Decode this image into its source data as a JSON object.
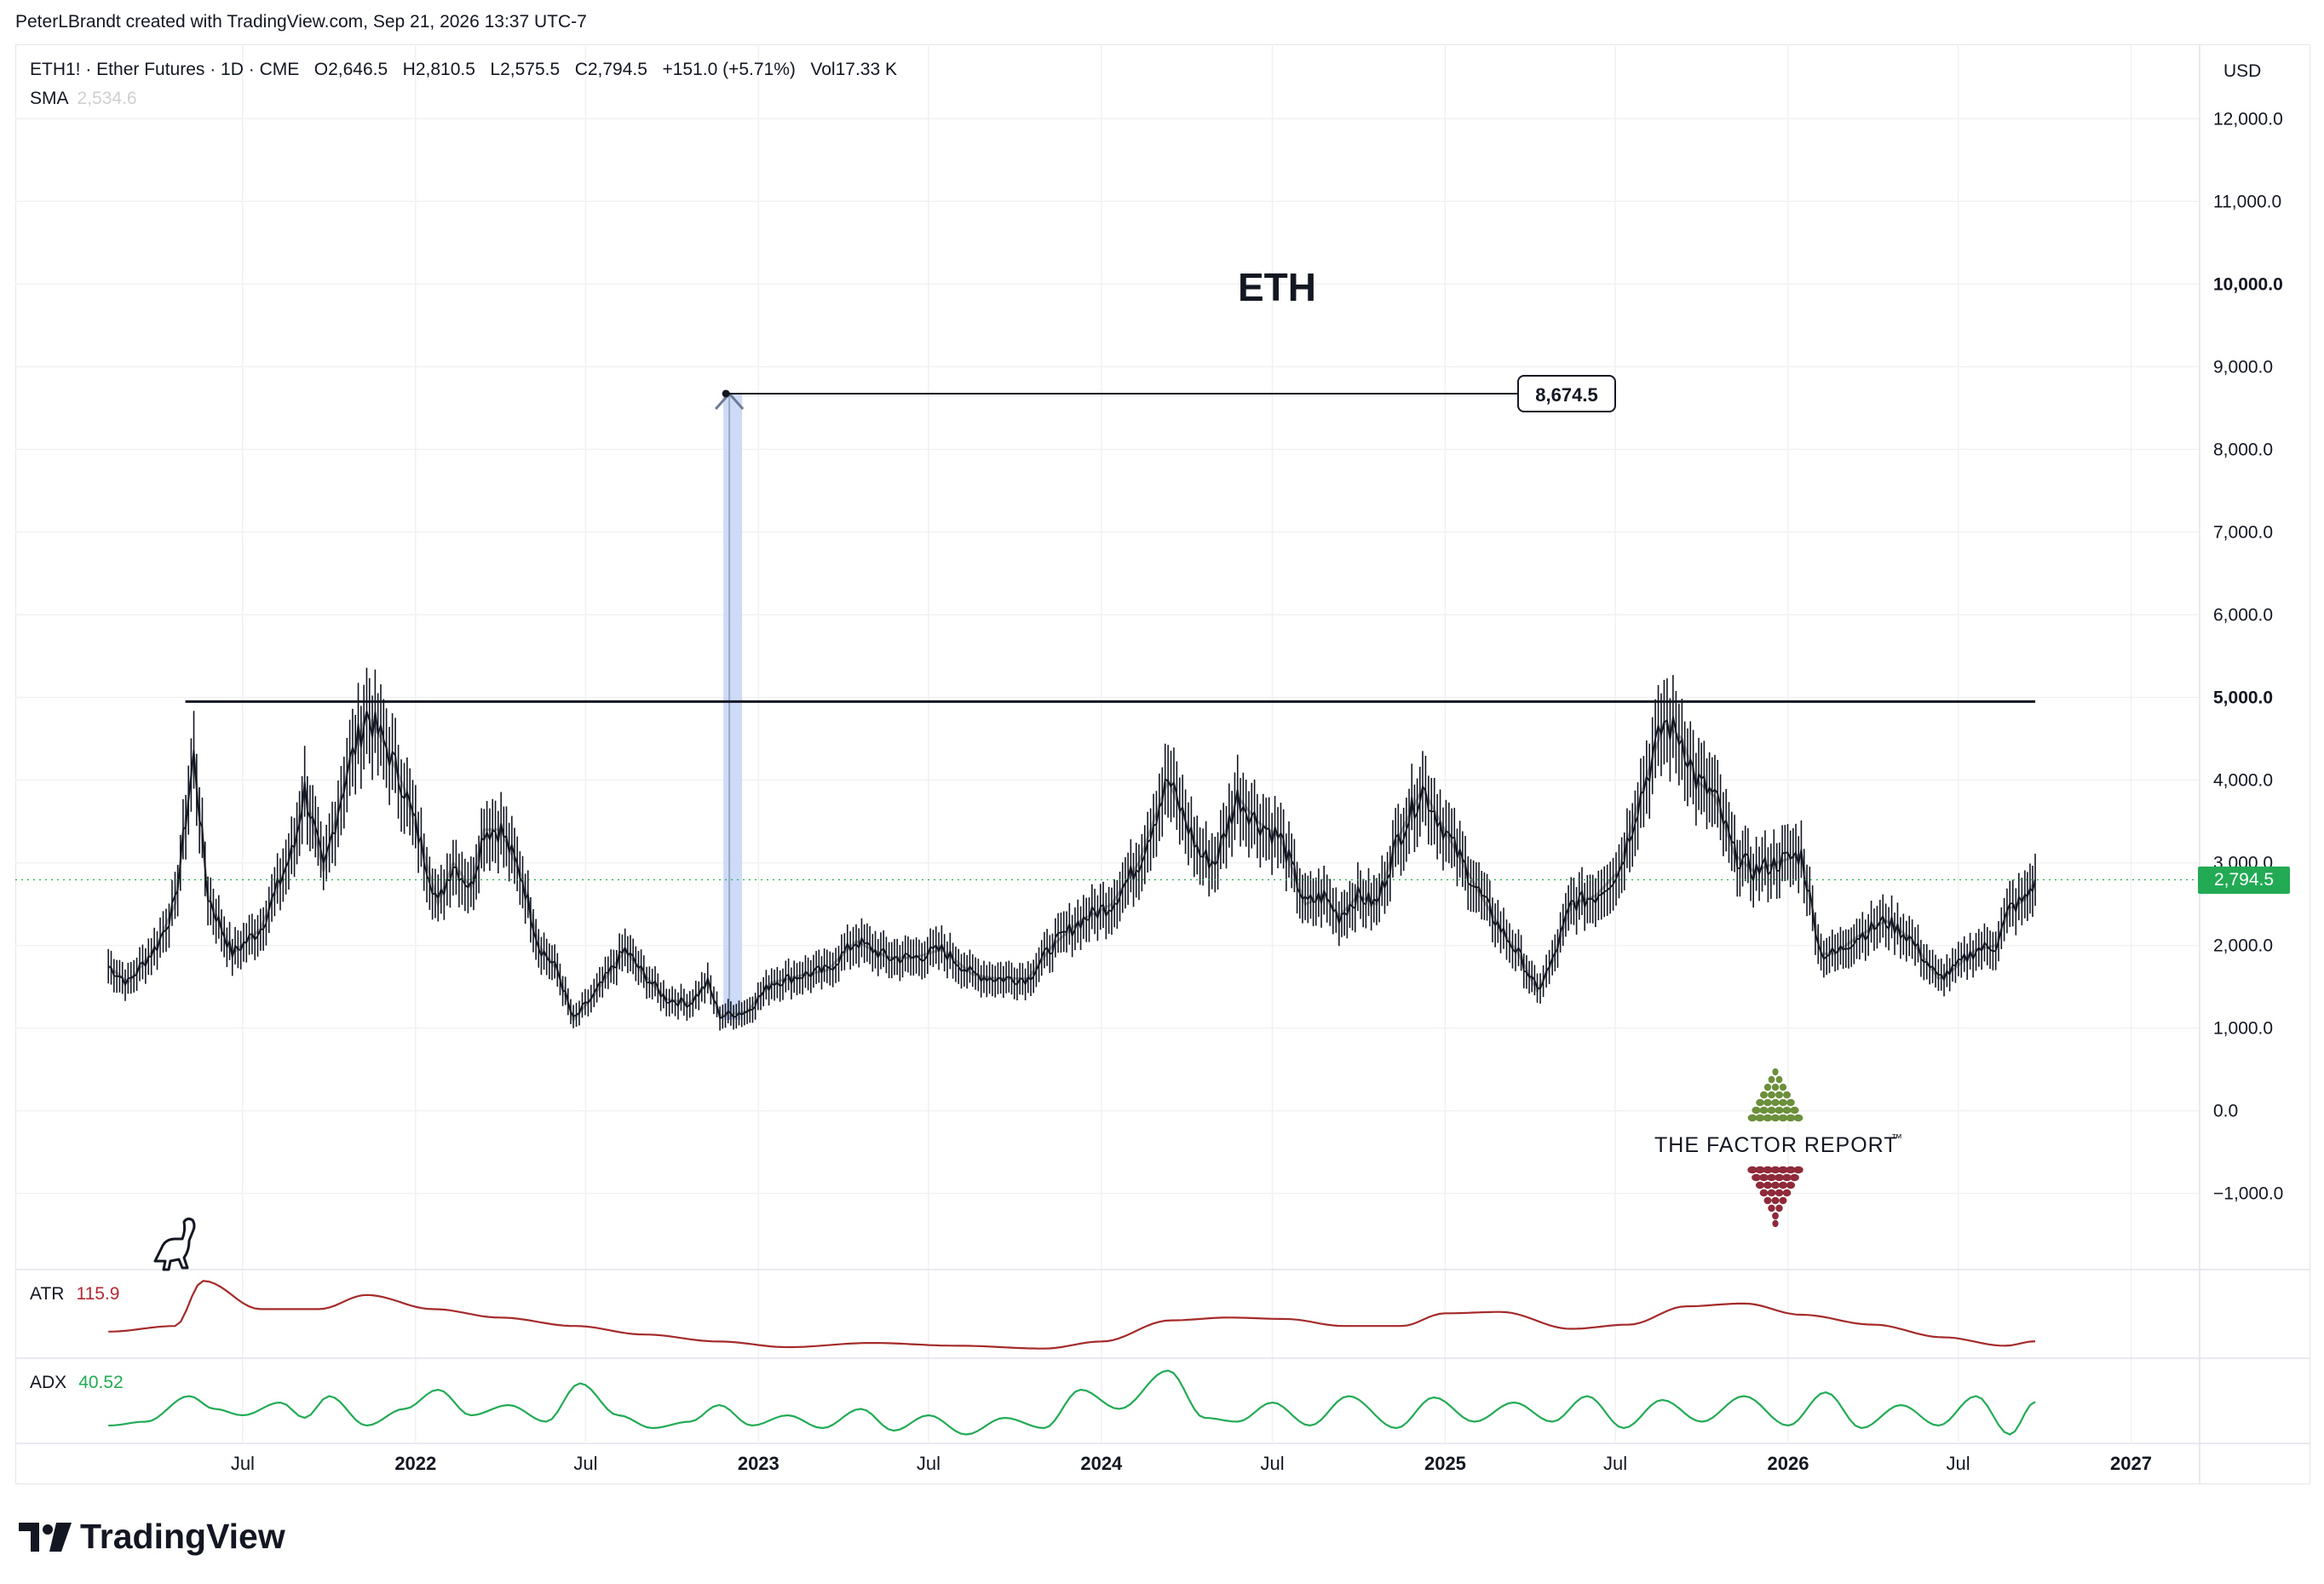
{
  "credit": "PeterLBrandt created with TradingView.com, Sep 21, 2026 13:37 UTC-7",
  "legend": {
    "symbol": "ETH1! · Ether Futures · 1D · CME",
    "open": "O2,646.5",
    "high": "H2,810.5",
    "low": "L2,575.5",
    "close": "C2,794.5",
    "change": "+151.0 (+5.71%)",
    "volume": "Vol17.33 K",
    "sma_label": "SMA",
    "sma_value": "2,534.6"
  },
  "currency": "USD",
  "title": "ETH",
  "last_price_label": "2,794.5",
  "target_label": "8,674.5",
  "indicators": {
    "atr_label": "ATR",
    "atr_value": "115.9",
    "adx_label": "ADX",
    "adx_value": "40.52"
  },
  "logo": {
    "text": "THE FACTOR REPORT",
    "tm": "™"
  },
  "brand": "TradingView",
  "colors": {
    "candle": "#131722",
    "sma": "#b5b5b5",
    "atr": "#a52a2a",
    "adx": "#22ab54",
    "target_band": "#c9d7f5",
    "last_price": "#22ab54"
  },
  "icons": [
    "dinosaur-icon",
    "tradingview-logo-icon",
    "factor-report-logo-icon"
  ],
  "chart_data": {
    "type": "line",
    "symbol": "ETH1!",
    "y_axis": {
      "ticks": [
        12000,
        11000,
        10000,
        9000,
        8000,
        7000,
        6000,
        5000,
        4000,
        3000,
        2000,
        1000,
        0,
        -1000
      ],
      "tick_labels": [
        "12,000.0",
        "11,000.0",
        "10,000.0",
        "9,000.0",
        "8,000.0",
        "7,000.0",
        "6,000.0",
        "5,000.0",
        "4,000.0",
        "3,000.0",
        "2,000.0",
        "1,000.0",
        "0.0",
        "−1,000.0"
      ],
      "range": [
        -1900,
        12900
      ]
    },
    "x_axis": {
      "tick_labels": [
        "Jul",
        "2022",
        "Jul",
        "2023",
        "Jul",
        "2024",
        "Jul",
        "2025",
        "Jul",
        "2026",
        "Jul",
        "2027"
      ],
      "tick_dates": [
        "2021-07-01",
        "2022-01-01",
        "2022-07-01",
        "2023-01-01",
        "2023-07-01",
        "2024-01-01",
        "2024-07-01",
        "2025-01-01",
        "2025-07-01",
        "2026-01-01",
        "2026-07-01",
        "2027-01-01"
      ],
      "range": [
        "2020-11-01",
        "2027-03-15"
      ]
    },
    "series": [
      {
        "name": "ETH1!",
        "x": [
          "2021-02-08",
          "2021-03-01",
          "2021-04-01",
          "2021-04-20",
          "2021-05-10",
          "2021-05-25",
          "2021-06-20",
          "2021-07-20",
          "2021-08-25",
          "2021-09-05",
          "2021-09-25",
          "2021-10-20",
          "2021-11-10",
          "2021-12-01",
          "2021-12-20",
          "2022-01-10",
          "2022-01-25",
          "2022-02-10",
          "2022-03-01",
          "2022-03-15",
          "2022-04-02",
          "2022-04-25",
          "2022-05-12",
          "2022-06-01",
          "2022-06-18",
          "2022-07-10",
          "2022-08-12",
          "2022-09-01",
          "2022-09-25",
          "2022-10-20",
          "2022-11-08",
          "2022-11-21",
          "2022-12-20",
          "2023-01-15",
          "2023-02-20",
          "2023-03-15",
          "2023-04-15",
          "2023-05-20",
          "2023-06-15",
          "2023-07-15",
          "2023-08-17",
          "2023-09-10",
          "2023-10-15",
          "2023-11-10",
          "2023-12-10",
          "2024-01-12",
          "2024-02-10",
          "2024-03-12",
          "2024-04-15",
          "2024-05-01",
          "2024-05-25",
          "2024-06-15",
          "2024-07-10",
          "2024-08-05",
          "2024-08-25",
          "2024-09-10",
          "2024-09-30",
          "2024-10-20",
          "2024-11-12",
          "2024-12-08",
          "2025-01-05",
          "2025-02-03",
          "2025-03-01",
          "2025-03-20",
          "2025-04-09",
          "2025-04-25",
          "2025-05-15",
          "2025-06-10",
          "2025-07-05",
          "2025-07-25",
          "2025-08-22",
          "2025-09-10",
          "2025-09-25",
          "2025-10-15",
          "2025-11-05",
          "2025-11-25",
          "2025-12-20",
          "2026-01-15",
          "2026-02-05",
          "2026-02-20",
          "2026-03-15",
          "2026-04-15",
          "2026-05-10",
          "2026-06-10",
          "2026-06-25",
          "2026-07-20",
          "2026-08-10",
          "2026-08-25",
          "2026-09-10",
          "2026-09-21"
        ],
        "values": [
          1750,
          1550,
          2000,
          2500,
          4300,
          2600,
          1900,
          2200,
          3200,
          3900,
          2900,
          4100,
          4800,
          4400,
          3900,
          3100,
          2500,
          3000,
          2700,
          3400,
          3400,
          2800,
          2000,
          1700,
          1100,
          1400,
          1950,
          1650,
          1350,
          1300,
          1550,
          1150,
          1200,
          1550,
          1650,
          1700,
          2050,
          1850,
          1850,
          1950,
          1650,
          1600,
          1600,
          2000,
          2300,
          2500,
          3000,
          4000,
          3100,
          3000,
          3800,
          3500,
          3300,
          2500,
          2600,
          2350,
          2600,
          2500,
          3300,
          3900,
          3300,
          2700,
          2200,
          1900,
          1450,
          1800,
          2500,
          2600,
          2900,
          3700,
          4700,
          4500,
          4000,
          3800,
          3100,
          2900,
          3000,
          3100,
          1900,
          1900,
          2100,
          2300,
          2100,
          1600,
          1700,
          1950,
          2000,
          2450,
          2550,
          2794.5
        ]
      }
    ],
    "annotations": {
      "resistance_level": 4950,
      "projection_start": 1100,
      "projection_target": 8674.5,
      "projection_date": "2022-12-01"
    },
    "indicators": {
      "atr": {
        "name": "ATR",
        "last": 115.9,
        "x": [
          "2021-02-08",
          "2021-04-20",
          "2021-05-20",
          "2021-07-20",
          "2021-09-20",
          "2021-11-10",
          "2022-01-20",
          "2022-04-01",
          "2022-06-20",
          "2022-09-01",
          "2022-11-20",
          "2023-02-01",
          "2023-05-01",
          "2023-08-01",
          "2023-11-01",
          "2024-01-01",
          "2024-03-15",
          "2024-05-15",
          "2024-07-15",
          "2024-09-15",
          "2024-11-15",
          "2025-01-01",
          "2025-03-01",
          "2025-05-15",
          "2025-07-15",
          "2025-09-15",
          "2025-11-15",
          "2026-01-15",
          "2026-04-01",
          "2026-06-15",
          "2026-08-20",
          "2026-09-21"
        ],
        "values": [
          150,
          170,
          330,
          230,
          230,
          280,
          230,
          200,
          170,
          140,
          115,
          95,
          110,
          100,
          90,
          115,
          190,
          200,
          195,
          170,
          170,
          215,
          220,
          160,
          175,
          240,
          250,
          210,
          175,
          130,
          100,
          115.9
        ]
      },
      "adx": {
        "name": "ADX",
        "last": 40.52,
        "x": [
          "2021-02-08",
          "2021-03-20",
          "2021-05-05",
          "2021-06-01",
          "2021-07-01",
          "2021-08-10",
          "2021-09-05",
          "2021-10-01",
          "2021-11-10",
          "2021-12-20",
          "2022-01-25",
          "2022-03-01",
          "2022-04-10",
          "2022-05-20",
          "2022-06-25",
          "2022-08-05",
          "2022-09-10",
          "2022-10-20",
          "2022-11-20",
          "2022-12-25",
          "2023-02-01",
          "2023-03-10",
          "2023-04-20",
          "2023-05-25",
          "2023-07-01",
          "2023-08-10",
          "2023-09-20",
          "2023-11-01",
          "2023-12-10",
          "2024-01-20",
          "2024-03-12",
          "2024-04-20",
          "2024-05-25",
          "2024-07-01",
          "2024-08-10",
          "2024-09-20",
          "2024-11-10",
          "2024-12-20",
          "2025-02-01",
          "2025-03-15",
          "2025-04-25",
          "2025-06-01",
          "2025-07-10",
          "2025-08-20",
          "2025-10-01",
          "2025-11-15",
          "2026-01-01",
          "2026-02-10",
          "2026-03-20",
          "2026-05-01",
          "2026-06-10",
          "2026-07-20",
          "2026-08-25",
          "2026-09-21"
        ],
        "values": [
          22,
          25,
          45,
          35,
          30,
          40,
          28,
          45,
          22,
          35,
          50,
          30,
          38,
          25,
          55,
          30,
          20,
          25,
          38,
          22,
          30,
          20,
          35,
          18,
          30,
          15,
          28,
          20,
          50,
          35,
          65,
          28,
          25,
          40,
          22,
          45,
          20,
          44,
          25,
          40,
          25,
          45,
          20,
          42,
          25,
          45,
          22,
          48,
          20,
          38,
          22,
          45,
          15,
          40.52
        ]
      }
    }
  }
}
